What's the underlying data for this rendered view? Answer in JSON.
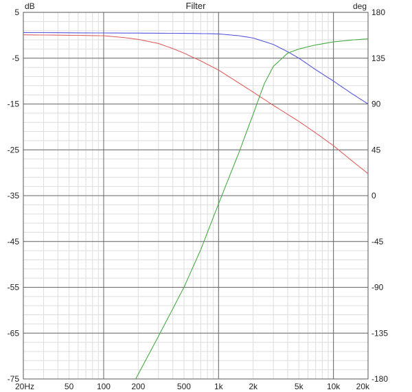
{
  "chart_data": {
    "type": "line",
    "title": "Filter",
    "y_left_label": "dB",
    "y_right_label": "deg",
    "x_scale": "log",
    "xlim": [
      20,
      20000
    ],
    "ylim_left": [
      -75,
      5
    ],
    "ylim_right": [
      -180,
      180
    ],
    "grid": true,
    "x_ticks": [
      {
        "value": 20,
        "label": "20Hz"
      },
      {
        "value": 50,
        "label": "50"
      },
      {
        "value": 100,
        "label": "100"
      },
      {
        "value": 200,
        "label": "200"
      },
      {
        "value": 500,
        "label": "500"
      },
      {
        "value": 1000,
        "label": "1k"
      },
      {
        "value": 2000,
        "label": "2k"
      },
      {
        "value": 5000,
        "label": "5k"
      },
      {
        "value": 10000,
        "label": "10k"
      },
      {
        "value": 20000,
        "label": "20k"
      }
    ],
    "y_left_ticks": [
      {
        "value": 5,
        "label": "5"
      },
      {
        "value": -5,
        "label": "-5"
      },
      {
        "value": -15,
        "label": "-15"
      },
      {
        "value": -25,
        "label": "-25"
      },
      {
        "value": -35,
        "label": "-35"
      },
      {
        "value": -45,
        "label": "-45"
      },
      {
        "value": -55,
        "label": "-55"
      },
      {
        "value": -65,
        "label": "-65"
      },
      {
        "value": -75,
        "label": "-75"
      }
    ],
    "y_right_ticks": [
      {
        "value": 180,
        "label": "180"
      },
      {
        "value": 135,
        "label": "135"
      },
      {
        "value": 90,
        "label": "90"
      },
      {
        "value": 45,
        "label": "45"
      },
      {
        "value": 0,
        "label": "0"
      },
      {
        "value": -45,
        "label": "-45"
      },
      {
        "value": -90,
        "label": "-90"
      },
      {
        "value": -135,
        "label": "-135"
      },
      {
        "value": -180,
        "label": "-180"
      }
    ],
    "series": [
      {
        "axis": "left",
        "color": "#5555dd",
        "points": [
          [
            20,
            0.6
          ],
          [
            100,
            0.5
          ],
          [
            300,
            0.45
          ],
          [
            600,
            0.4
          ],
          [
            1000,
            0.3
          ],
          [
            1500,
            -0.1
          ],
          [
            2000,
            -0.6
          ],
          [
            3000,
            -2.0
          ],
          [
            4000,
            -3.6
          ],
          [
            5000,
            -5.0
          ],
          [
            7000,
            -7.5
          ],
          [
            10000,
            -10.0
          ],
          [
            14000,
            -12.5
          ],
          [
            20000,
            -15.0
          ]
        ]
      },
      {
        "axis": "left",
        "color": "#e06060",
        "points": [
          [
            20,
            0.1
          ],
          [
            50,
            0.0
          ],
          [
            100,
            -0.1
          ],
          [
            150,
            -0.5
          ],
          [
            200,
            -0.9
          ],
          [
            300,
            -1.8
          ],
          [
            400,
            -2.9
          ],
          [
            500,
            -3.9
          ],
          [
            700,
            -5.6
          ],
          [
            1000,
            -7.6
          ],
          [
            1500,
            -10.4
          ],
          [
            2000,
            -12.4
          ],
          [
            3000,
            -15.3
          ],
          [
            5000,
            -18.8
          ],
          [
            7000,
            -21.3
          ],
          [
            10000,
            -24.1
          ],
          [
            15000,
            -27.7
          ],
          [
            20000,
            -30.2
          ]
        ]
      },
      {
        "axis": "right",
        "color": "#44aa44",
        "points": [
          [
            190,
            -180
          ],
          [
            300,
            -138
          ],
          [
            500,
            -90
          ],
          [
            700,
            -53
          ],
          [
            1000,
            -8
          ],
          [
            1500,
            42
          ],
          [
            2000,
            80
          ],
          [
            2500,
            110
          ],
          [
            3000,
            127
          ],
          [
            4000,
            140
          ],
          [
            5000,
            144
          ],
          [
            7000,
            148
          ],
          [
            10000,
            151
          ],
          [
            15000,
            153
          ],
          [
            20000,
            154
          ]
        ]
      }
    ]
  }
}
